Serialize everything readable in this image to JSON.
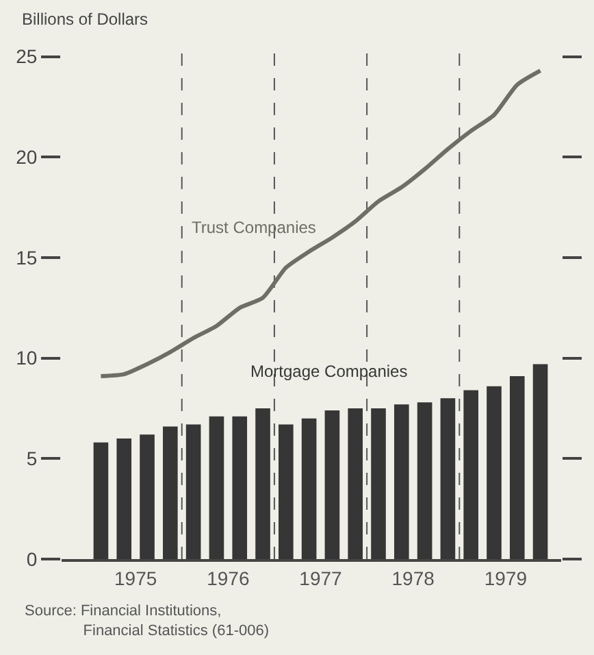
{
  "chart_data": {
    "type": "bar",
    "ylabel": "Billions of Dollars",
    "x": [
      1975.125,
      1975.375,
      1975.625,
      1975.875,
      1976.125,
      1976.375,
      1976.625,
      1976.875,
      1977.125,
      1977.375,
      1977.625,
      1977.875,
      1978.125,
      1978.375,
      1978.625,
      1978.875,
      1979.125,
      1979.375,
      1979.625,
      1979.875
    ],
    "series": [
      {
        "name": "Trust Companies",
        "type": "line",
        "color": "#6e6e64",
        "values": [
          9.1,
          9.2,
          9.7,
          10.3,
          11.0,
          11.6,
          12.5,
          13.0,
          14.5,
          15.3,
          16.0,
          16.8,
          17.8,
          18.5,
          19.4,
          20.4,
          21.3,
          22.1,
          23.6,
          24.3
        ]
      },
      {
        "name": "Mortgage Companies",
        "color": "#363636",
        "values": [
          5.8,
          6.0,
          6.2,
          6.6,
          6.7,
          7.1,
          7.1,
          7.5,
          6.7,
          7.0,
          7.4,
          7.5,
          7.5,
          7.7,
          7.8,
          8.0,
          8.4,
          8.6,
          9.1,
          9.7
        ]
      }
    ],
    "xlim": [
      1974.7,
      1980.1
    ],
    "xticks": [
      {
        "value": 1975.5,
        "label": "1975"
      },
      {
        "value": 1976.5,
        "label": "1976"
      },
      {
        "value": 1977.5,
        "label": "1977"
      },
      {
        "value": 1978.5,
        "label": "1978"
      },
      {
        "value": 1979.5,
        "label": "1979"
      }
    ],
    "ylim": [
      0,
      25.5
    ],
    "yticks": [
      0,
      5,
      10,
      15,
      20,
      25
    ],
    "ref_lines": [
      {
        "axis": "x",
        "value": 1976,
        "line_style": "dashed",
        "color": "#555555"
      },
      {
        "axis": "x",
        "value": 1977,
        "line_style": "dashed",
        "color": "#555555"
      },
      {
        "axis": "x",
        "value": 1978,
        "line_style": "dashed",
        "color": "#555555"
      },
      {
        "axis": "x",
        "value": 1979,
        "line_style": "dashed",
        "color": "#555555"
      }
    ],
    "annotations": [
      "Source: Financial Institutions,\nFinancial Statistics (61-006)"
    ],
    "grid": false,
    "legend": false
  }
}
